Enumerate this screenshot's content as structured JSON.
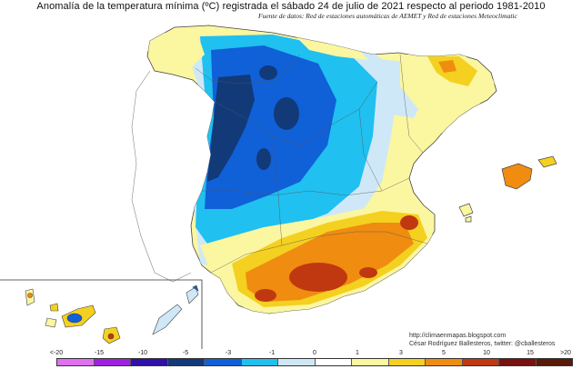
{
  "map": {
    "title": "Anomalía de la temperatura mínima (ºC) registrada el sábado 24 de julio de 2021 respecto al periodo 1981-2010",
    "subtitle": "Fuente de datos: Red de estaciones automáticas de AEMET y Red de estaciones Meteoclimatic",
    "region": "España peninsular, Baleares y Canarias",
    "variable": "Anomalía de la temperatura mínima",
    "units": "ºC"
  },
  "credits": {
    "website": "http://climaenmapas.blogspot.com",
    "author": "César Rodríguez Ballesteros, twitter: @cballesteros"
  },
  "legend": {
    "ticks": [
      "<-20",
      "-15",
      "-10",
      "-5",
      "-3",
      "-1",
      "0",
      "1",
      "3",
      "5",
      "10",
      "15",
      ">20"
    ],
    "colors": [
      "#e070f0",
      "#a020e0",
      "#3010a8",
      "#123a78",
      "#1060d8",
      "#20c0f0",
      "#cfe8f8",
      "#ffffff",
      "#fbf6a0",
      "#f4d020",
      "#f08c10",
      "#c03810",
      "#7a1010",
      "#5a1a08"
    ]
  },
  "palette": {
    "dark_navy": "#123a78",
    "blue": "#1060d8",
    "cyan": "#20c0f0",
    "pale_blue": "#cfe8f8",
    "yellow": "#fbf6a0",
    "gold": "#f4d020",
    "orange": "#f08c10",
    "red": "#c03810"
  }
}
